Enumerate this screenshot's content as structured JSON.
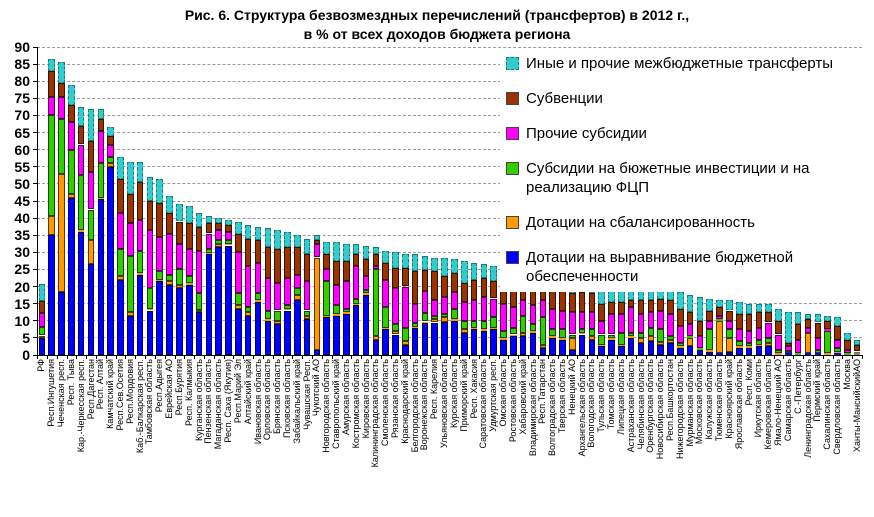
{
  "title": {
    "line1": "Рис. 6. Структура безвозмездных перечислений (трансфертов) в 2012 г.,",
    "line2": "в % от всех доходов бюджета региона"
  },
  "legend": {
    "items": [
      {
        "label": "Иные и прочие межбюджетные трансферты",
        "color": "#33CCCC"
      },
      {
        "label": "Субвенции",
        "color": "#993300"
      },
      {
        "label": "Прочие субсидии",
        "color": "#FF00FF"
      },
      {
        "label": "Субсидии на бюжетные инвестиции и на реализацию ФЦП",
        "color": "#33CC00"
      },
      {
        "label": "Дотации на сбалансированность",
        "color": "#FF9900"
      },
      {
        "label": "Дотации на выравнивание бюджетной обеспеченности",
        "color": "#0000FF"
      }
    ]
  },
  "chart_data": {
    "type": "bar",
    "stacked": true,
    "title": "Рис. 6. Структура безвозмездных перечислений (трансфертов) в 2012 г., в % от всех доходов бюджета региона",
    "ylabel": "% от всех доходов бюджета региона",
    "ylim": [
      0,
      90
    ],
    "ytick_step": 5,
    "grid": "horizontal-dashed",
    "legend_position": "top-right-inside",
    "categories": [
      "РФ",
      "Респ.Ингушетия",
      "Чеченская респ.",
      "Респ. Тыва",
      "Кар.-Черкесская респ.",
      "Респ.Дагестан",
      "Респ. Алтай",
      "Камчатский край",
      "Респ.Сев.Осетия",
      "Респ.Мордовия",
      "Каб.-Балкарская респ.",
      "Тамбовская область",
      "Респ.Адыгея",
      "Еврейская АО",
      "Респ.Бурятия",
      "Респ. Калмыкия",
      "Курганская область",
      "Пензенская область",
      "Магаданская область",
      "Респ. Саха (Якутия)",
      "Респ.Марий Эл",
      "Алтайский край",
      "Ивановская область",
      "Орловская область",
      "Брянская область",
      "Псковская область",
      "Забайкальский край",
      "Чувашская Респ.",
      "Чукотский АО",
      "Новгородская область",
      "Ставропольский край",
      "Амурская область",
      "Костромская область",
      "Кировская область",
      "Калининградская область",
      "Смоленская область",
      "Рязанская область",
      "Краснодарский край",
      "Белгородская область",
      "Воронежская область",
      "Респ. Карелия",
      "Ульяновская область",
      "Курская область",
      "Приморский край",
      "Респ. Хакасия",
      "Саратовская область",
      "Удмуртская респ.",
      "Омская область",
      "Ростовская область",
      "Хабаровский край",
      "Владимирская область",
      "Респ.Татарстан",
      "Волгоградская область",
      "Тверская область",
      "Ненецкий АО",
      "Архангельская область",
      "Вологодская область",
      "Тульская область",
      "Томская область",
      "Липецкая область",
      "Астраханская область",
      "Челябинская область",
      "Оренбургская область",
      "Новосибирская область",
      "Респ.Башкортостан",
      "Нижегородская область",
      "Мурманская область",
      "Московская область",
      "Калужская область",
      "Тюменская область",
      "Красноярский край",
      "Ярославская область",
      "Респ. Коми",
      "Иркутская область",
      "Кемеровская область",
      "Ямало-Ненецкий АО",
      "Самарская область",
      "С.-Петербург",
      "Ленинградская область",
      "Пермский край",
      "Сахалинская область",
      "Свердловская область",
      "Москва",
      "Ханты-МансийскийАО"
    ],
    "series": [
      {
        "name": "Дотации на выравнивание бюджетной обеспеченности",
        "color": "#0000FF",
        "values": [
          5,
          35,
          18.5,
          46,
          36,
          26.5,
          45.5,
          55,
          22,
          11.5,
          23.5,
          13,
          21.5,
          20.5,
          19.5,
          20.5,
          12.5,
          29.5,
          31.5,
          32,
          13.5,
          11.5,
          15.5,
          10,
          9,
          13,
          16,
          10.5,
          1.5,
          11,
          11.5,
          12,
          14.5,
          17.5,
          4.5,
          7.5,
          6,
          3,
          7.8,
          9.3,
          9.5,
          9.7,
          10,
          6.5,
          7.5,
          7,
          7.5,
          4.5,
          5.5,
          5.5,
          6.5,
          2,
          5,
          4.5,
          1.5,
          6,
          4.5,
          2.5,
          4.5,
          2.5,
          5,
          3.5,
          4,
          3,
          3.5,
          2,
          2.5,
          1.5,
          1,
          0.5,
          1,
          2,
          2,
          2.5,
          2.5,
          0,
          0.5,
          0,
          0.5,
          0.5,
          0,
          0.5,
          0,
          0
        ]
      },
      {
        "name": "Дотации на сбалансированность",
        "color": "#FF9900",
        "values": [
          0.7,
          5.5,
          34.5,
          1,
          0.5,
          7,
          0.5,
          1,
          1,
          1,
          0.5,
          0.5,
          0.5,
          1,
          1,
          0.5,
          0.7,
          0.3,
          1,
          0.5,
          1,
          1,
          0.5,
          0.5,
          1,
          0.5,
          1.5,
          1,
          27,
          0.5,
          0.5,
          0.5,
          0.5,
          0.5,
          1,
          0.5,
          1,
          1,
          0.5,
          0.5,
          1,
          1.3,
          0.5,
          1,
          0.5,
          0.5,
          0.5,
          0.5,
          0.5,
          1,
          0.5,
          1,
          0.5,
          0.5,
          3.5,
          0.5,
          1,
          0.5,
          0.5,
          0.5,
          0.5,
          1.5,
          1.5,
          0.7,
          1,
          0.5,
          2.5,
          0,
          0.5,
          9.5,
          4,
          0.5,
          0.5,
          0.5,
          1,
          0.5,
          0,
          0,
          6,
          0,
          0.5,
          0.5,
          0,
          0
        ]
      },
      {
        "name": "Субсидии на бюжетные инвестиции и на реализацию ФЦП",
        "color": "#33CC00",
        "values": [
          2.5,
          29.5,
          16,
          13,
          16,
          9,
          10,
          2,
          8,
          16.5,
          6.5,
          6,
          2.5,
          2,
          4.5,
          2,
          4.8,
          1.2,
          1,
          1,
          3.5,
          1.5,
          2,
          2.5,
          3,
          1,
          2,
          1.5,
          0,
          10,
          2.5,
          1,
          1.5,
          1,
          19.5,
          6,
          2,
          4,
          1,
          2.5,
          1,
          1,
          3,
          2.5,
          2,
          2.5,
          3,
          2,
          2,
          5,
          2,
          8,
          2,
          2.5,
          1,
          1,
          2,
          3,
          1,
          3.5,
          1,
          1.5,
          2.5,
          3.8,
          1,
          1,
          0.5,
          0.5,
          6,
          0.5,
          2.5,
          1.5,
          1,
          1.5,
          1.5,
          1,
          0.7,
          0.5,
          0,
          1,
          6.5,
          1,
          0.5,
          0.5
        ]
      },
      {
        "name": "Прочие субсидии",
        "color": "#FF00FF",
        "values": [
          4,
          5.5,
          6.5,
          8,
          9,
          11,
          9.5,
          3.5,
          10.5,
          9.5,
          9,
          17,
          10,
          12,
          7.5,
          8,
          12.5,
          4.5,
          3,
          2.5,
          12,
          12,
          9,
          9.5,
          8,
          8,
          4,
          8.5,
          4,
          3.5,
          6,
          8,
          9.5,
          4,
          1,
          8,
          10.5,
          12,
          5.7,
          6.5,
          4.5,
          5,
          5,
          5.5,
          6,
          7,
          5.5,
          8,
          6,
          4.5,
          5.5,
          5,
          6,
          5.5,
          6.5,
          5,
          5,
          4,
          6,
          5.5,
          7.5,
          5.5,
          4.5,
          5.5,
          6.5,
          5,
          3.5,
          3.5,
          2.5,
          1,
          2.5,
          3.5,
          3.5,
          3.5,
          4.5,
          4.5,
          1.5,
          4,
          1.5,
          3.5,
          0.5,
          2.5,
          1,
          0.5
        ]
      },
      {
        "name": "Субвенции",
        "color": "#993300",
        "values": [
          3.5,
          7.5,
          4,
          5,
          5.5,
          9,
          3.5,
          2.5,
          10,
          8.5,
          11,
          8.5,
          10,
          6,
          6.5,
          7.5,
          7,
          3,
          2,
          2,
          5.5,
          8,
          6.5,
          9,
          10,
          9,
          8,
          8,
          1,
          4.5,
          7,
          6,
          3.5,
          5,
          3.5,
          5,
          6,
          5.5,
          9.5,
          6,
          8.5,
          6,
          5.5,
          5.5,
          6,
          5.5,
          5,
          6,
          7,
          5,
          6,
          4.5,
          6,
          6,
          5.5,
          6,
          5.5,
          5,
          3.5,
          3.5,
          2,
          4,
          3.5,
          3.5,
          4,
          5,
          3.5,
          4.5,
          3,
          2.5,
          3,
          4.5,
          5,
          4.5,
          3,
          4,
          0.8,
          4.5,
          2.5,
          4.5,
          2.5,
          4,
          3,
          2
        ]
      },
      {
        "name": "Иные и прочие межбюджетные трансферты",
        "color": "#33CCCC",
        "values": [
          5,
          3.5,
          6,
          6,
          5.5,
          9.5,
          3,
          2.5,
          6.5,
          9.5,
          6,
          7,
          7,
          5,
          5,
          5,
          4,
          2,
          1.5,
          1.5,
          3.5,
          4,
          4,
          5.5,
          5.5,
          4.5,
          3.5,
          4.5,
          1.5,
          3.5,
          5.5,
          5,
          3,
          4,
          2,
          3.5,
          4.5,
          4,
          5,
          4.2,
          4,
          5.5,
          4,
          6.5,
          5,
          4,
          4.5,
          4.5,
          4.5,
          4,
          4.5,
          4,
          4,
          4,
          4.5,
          3.5,
          3.5,
          5,
          4.5,
          4.5,
          3.5,
          3.5,
          3,
          2.5,
          3,
          5,
          5,
          7,
          3.5,
          2,
          3,
          3.5,
          3,
          2.5,
          2.5,
          3.5,
          9,
          3.5,
          1.5,
          2.5,
          1.5,
          2.5,
          2,
          1.5
        ]
      }
    ]
  }
}
